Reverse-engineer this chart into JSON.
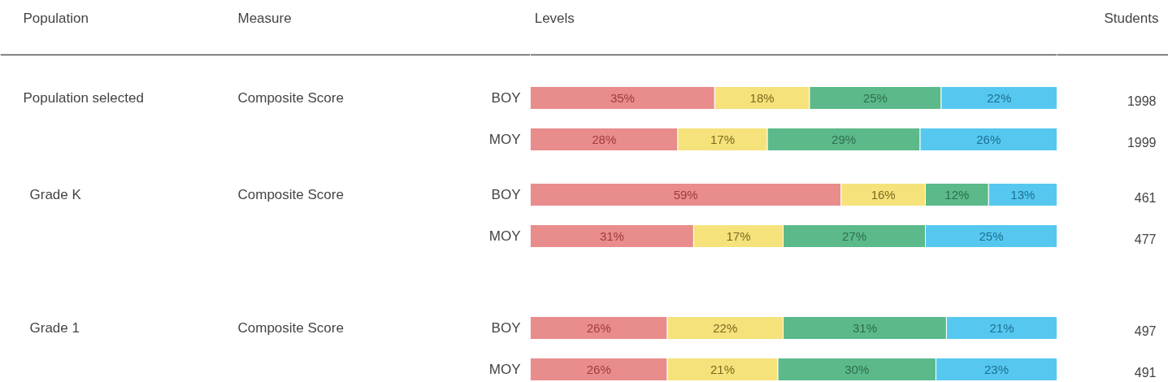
{
  "chart_data": {
    "type": "bar",
    "orientation": "horizontal",
    "stacked": true,
    "categories": [
      "BOY",
      "MOY",
      "BOY",
      "MOY",
      "BOY",
      "MOY"
    ],
    "xlim": [
      0,
      100
    ],
    "tick_labels": "y",
    "series": [
      {
        "color": "#e88c8c",
        "values": [
          35,
          28,
          59,
          31,
          26,
          26
        ],
        "value_labels": [
          "35%",
          "28%",
          "59%",
          "31%",
          "26%",
          "26%"
        ]
      },
      {
        "color": "#f5e27a",
        "values": [
          18,
          17,
          16,
          17,
          22,
          21
        ],
        "value_labels": [
          "18%",
          "17%",
          "16%",
          "17%",
          "22%",
          "21%"
        ]
      },
      {
        "color": "#5bb98a",
        "values": [
          25,
          29,
          12,
          27,
          31,
          30
        ],
        "value_labels": [
          "25%",
          "29%",
          "12%",
          "27%",
          "31%",
          "30%"
        ]
      },
      {
        "color": "#56c8f0",
        "values": [
          22,
          26,
          13,
          25,
          21,
          23
        ],
        "value_labels": [
          "22%",
          "26%",
          "13%",
          "25%",
          "21%",
          "23%"
        ]
      }
    ],
    "annotations": [
      "Population",
      "Measure",
      "Levels",
      "Students",
      "Population selected",
      "Grade K",
      "Grade 1",
      "Composite Score",
      "Composite Score",
      "Composite Score",
      "1998",
      "1999",
      "461",
      "477",
      "497",
      "491"
    ]
  }
}
